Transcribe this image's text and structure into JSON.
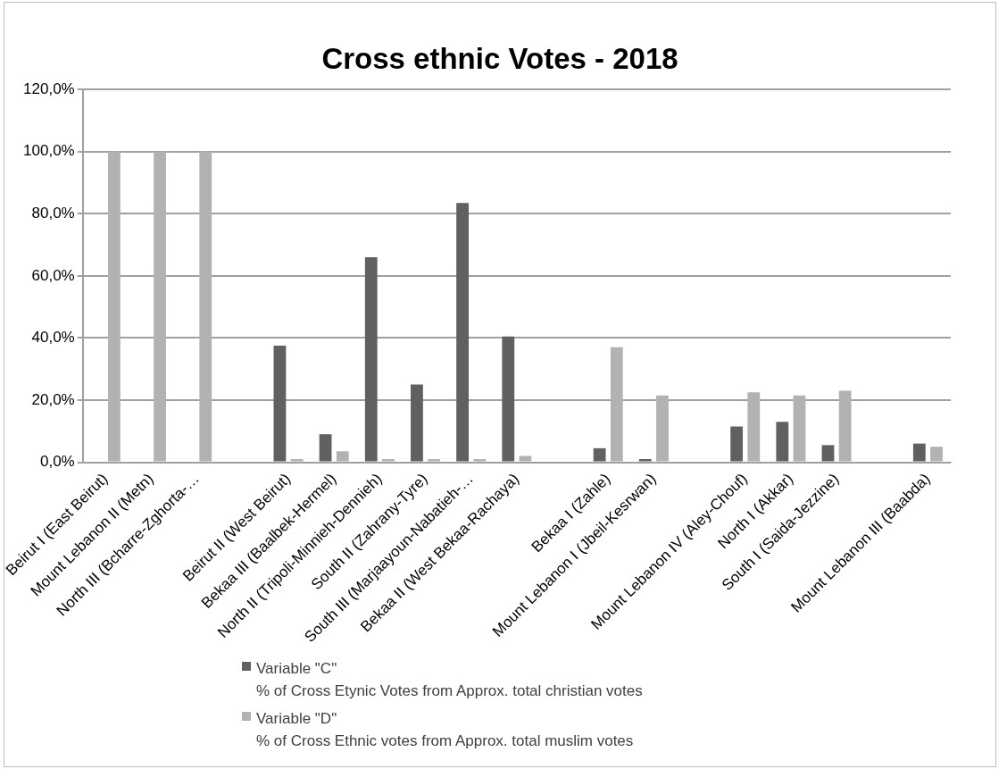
{
  "chart_data": {
    "type": "bar",
    "title": "Cross ethnic Votes - 2018",
    "categories": [
      "Beirut I (East Beirut)",
      "Mount Lebanon II (Metn)",
      "North III (Bcharre-Zghorta-…",
      null,
      "Beirut II (West Beirut)",
      "Bekaa III (Baalbek-Hermel)",
      "North II (Tripoli-Minnieh-Dennieh)",
      "South II (Zahrany-Tyre)",
      "South III (Marjaayoun-Nabatieh-…",
      "Bekaa II (West Bekaa-Rachaya)",
      null,
      "Bekaa I (Zahle)",
      "Mount Lebanon I (Jbeil-Kesrwan)",
      null,
      "Mount Lebanon IV (Aley-Chouf)",
      "North I (Akkar)",
      "South I (Saida-Jezzine)",
      null,
      "Mount Lebanon III (Baabda)"
    ],
    "series": [
      {
        "name": "Variable \"C\"\n% of Cross Etynic Votes from Approx. total christian votes",
        "color": "#606060",
        "values": [
          null,
          null,
          null,
          null,
          37.5,
          9,
          66,
          25,
          83.5,
          40.5,
          null,
          4.5,
          1,
          null,
          11.5,
          13,
          5.5,
          null,
          6
        ]
      },
      {
        "name": "Variable \"D\"\n% of Cross Ethnic votes from Approx. total muslim votes",
        "color": "#b2b2b2",
        "values": [
          100,
          100,
          100,
          null,
          1,
          3.5,
          1,
          1,
          1,
          2,
          null,
          37,
          21.5,
          null,
          22.5,
          21.5,
          23,
          null,
          5
        ]
      }
    ],
    "ylim": [
      0,
      120
    ],
    "yticks": [
      {
        "value": 0,
        "label": "0,0%"
      },
      {
        "value": 20,
        "label": "20,0%"
      },
      {
        "value": 40,
        "label": "40,0%"
      },
      {
        "value": 60,
        "label": "60,0%"
      },
      {
        "value": 80,
        "label": "80,0%"
      },
      {
        "value": 100,
        "label": "100,0%"
      },
      {
        "value": 120,
        "label": "120,0%"
      }
    ],
    "grid": "y",
    "legend": "bottom"
  }
}
